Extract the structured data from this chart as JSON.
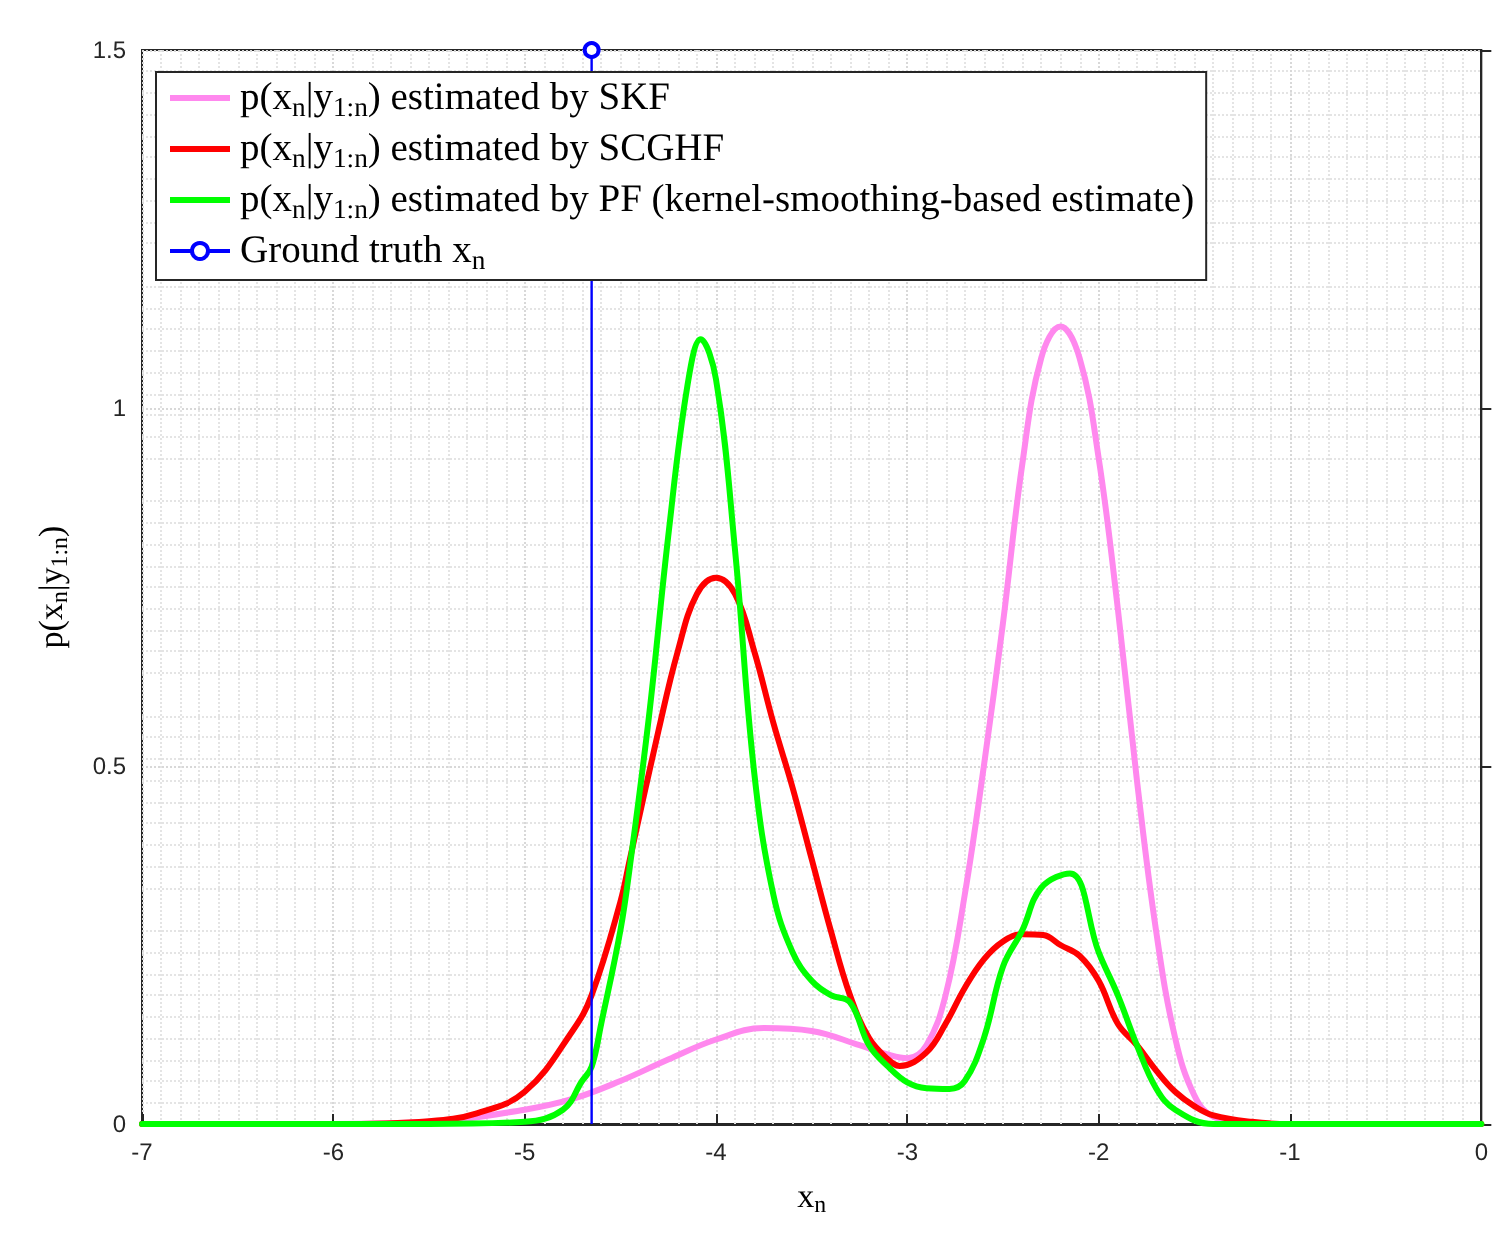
{
  "chart_data": {
    "type": "line",
    "xlabel": "x$_{n}$",
    "ylabel": "p(x$_{n}$|y$_{1:n}$)",
    "xlim": [
      -7,
      0
    ],
    "xticks": [
      -7,
      -6,
      -5,
      -4,
      -3,
      -2,
      -1,
      0
    ],
    "ylim": [
      0,
      1.5
    ],
    "yticks": [
      0,
      {
        "value": 0.5,
        "label": "0.5"
      },
      1,
      {
        "value": 1.5,
        "label": "1.5"
      }
    ],
    "grid": true,
    "legend": "top left",
    "series": [
      {
        "name": "p(x$_{n}$|y$_{1:n}$) estimated by SKF",
        "color": "#ff88ee",
        "x": [
          -7,
          -6,
          -5.5,
          -5,
          -4.75,
          -4.5,
          -4.25,
          -4,
          -3.75,
          -3.5,
          -3.25,
          -3.1,
          -3,
          -2.9,
          -2.8,
          -2.7,
          -2.6,
          -2.5,
          -2.4,
          -2.3,
          -2.2,
          -2.1,
          -2,
          -1.9,
          -1.8,
          -1.7,
          -1.6,
          -1.5,
          -1.4,
          -1.2
        ],
        "values": [
          0,
          0,
          0.003,
          0.02,
          0.035,
          0.06,
          0.09,
          0.118,
          0.134,
          0.13,
          0.11,
          0.097,
          0.092,
          0.11,
          0.18,
          0.32,
          0.5,
          0.7,
          0.92,
          1.07,
          1.114,
          1.07,
          0.93,
          0.72,
          0.48,
          0.27,
          0.12,
          0.04,
          0.01,
          0
        ]
      },
      {
        "name": "p(x$_{n}$|y$_{1:n}$) estimated by SCGHF",
        "color": "#ff0000",
        "x": [
          -7,
          -6,
          -5.5,
          -5.25,
          -5,
          -4.75,
          -4.65,
          -4.5,
          -4.45,
          -4.3,
          -4.2,
          -4.1,
          -4,
          -3.9,
          -3.8,
          -3.7,
          -3.6,
          -3.5,
          -3.4,
          -3.3,
          -3.2,
          -3.1,
          -3.04,
          -2.9,
          -2.8,
          -2.7,
          -2.6,
          -2.5,
          -2.4,
          -2.29,
          -2.2,
          -2.1,
          -2,
          -1.9,
          -1.8,
          -1.7,
          -1.6,
          -1.5,
          -1.4,
          -1.2,
          -1,
          0
        ],
        "values": [
          0,
          0,
          0.004,
          0.015,
          0.045,
          0.13,
          0.18,
          0.31,
          0.37,
          0.55,
          0.66,
          0.74,
          0.763,
          0.74,
          0.66,
          0.56,
          0.47,
          0.37,
          0.27,
          0.18,
          0.12,
          0.09,
          0.081,
          0.1,
          0.14,
          0.19,
          0.23,
          0.255,
          0.265,
          0.264,
          0.25,
          0.235,
          0.2,
          0.14,
          0.11,
          0.075,
          0.045,
          0.025,
          0.012,
          0.003,
          0,
          0
        ]
      },
      {
        "name": "p(x$_{n}$|y$_{1:n}$) estimated by PF (kernel-smoothing-based estimate)",
        "color": "#00ff00",
        "x": [
          -7,
          -5.5,
          -5,
          -4.8,
          -4.7,
          -4.65,
          -4.6,
          -4.5,
          -4.45,
          -4.35,
          -4.25,
          -4.15,
          -4.08,
          -4,
          -3.9,
          -3.8,
          -3.7,
          -3.6,
          -3.5,
          -3.4,
          -3.3,
          -3.2,
          -3.1,
          -3,
          -2.9,
          -2.78,
          -2.7,
          -2.6,
          -2.5,
          -2.4,
          -2.3,
          -2.15,
          -2,
          -1.9,
          -1.8,
          -1.7,
          -1.6,
          -1.4,
          0
        ],
        "values": [
          0,
          0,
          0.003,
          0.02,
          0.06,
          0.08,
          0.14,
          0.27,
          0.36,
          0.57,
          0.82,
          1.03,
          1.096,
          1.04,
          0.8,
          0.49,
          0.32,
          0.24,
          0.2,
          0.18,
          0.17,
          0.11,
          0.08,
          0.058,
          0.05,
          0.049,
          0.06,
          0.12,
          0.22,
          0.27,
          0.33,
          0.35,
          0.24,
          0.18,
          0.11,
          0.05,
          0.02,
          0,
          0
        ]
      },
      {
        "name": "Ground truth x$_{n}$",
        "color": "#0000ff",
        "type": "lollipop",
        "x": [
          -4.65
        ],
        "values": [
          1.5
        ]
      }
    ]
  }
}
